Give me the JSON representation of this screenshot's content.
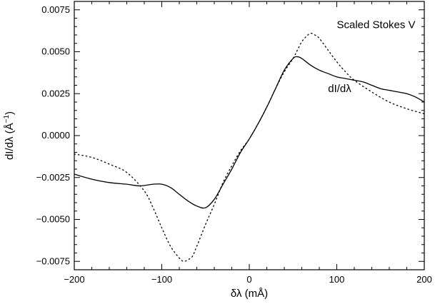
{
  "chart_data": {
    "type": "line",
    "title": "",
    "xlabel": "δλ  (mÅ)",
    "ylabel": "dI/dλ  (Å",
    "ylabel_superscript": "−1",
    "ylabel_close": ")",
    "xlim": [
      -200,
      200
    ],
    "ylim": [
      -0.008,
      0.008
    ],
    "xticks": [
      -200,
      -100,
      0,
      100,
      200
    ],
    "xtick_labels": [
      "−200",
      "−100",
      "0",
      "100",
      "200"
    ],
    "yticks": [
      -0.0075,
      -0.005,
      -0.0025,
      0,
      0.0025,
      0.005,
      0.0075
    ],
    "ytick_labels": [
      "−0.0075",
      "−0.0050",
      "−0.0025",
      "0.0000",
      "0.0025",
      "0.0050",
      "0.0075"
    ],
    "grid": false,
    "annotations": [
      {
        "text": "Scaled Stokes V",
        "x": 100,
        "y": 0.0064
      },
      {
        "text": "dI/dλ",
        "x": 90,
        "y": 0.0026
      }
    ],
    "series": [
      {
        "name": "dI/dλ",
        "style": "solid",
        "color": "#000000",
        "x": [
          -200,
          -180,
          -160,
          -140,
          -125,
          -110,
          -100,
          -90,
          -80,
          -70,
          -60,
          -50,
          -40,
          -30,
          -20,
          -10,
          0,
          10,
          20,
          30,
          40,
          50,
          55,
          60,
          70,
          80,
          90,
          100,
          110,
          120,
          130,
          140,
          150,
          160,
          170,
          180,
          190,
          200
        ],
        "y": [
          -0.0023,
          -0.0026,
          -0.0028,
          -0.0029,
          -0.003,
          -0.0029,
          -0.0029,
          -0.0031,
          -0.0035,
          -0.0039,
          -0.0042,
          -0.0043,
          -0.0038,
          -0.0029,
          -0.002,
          -0.001,
          -0.0002,
          0.0007,
          0.0017,
          0.0028,
          0.0039,
          0.0046,
          0.0047,
          0.0046,
          0.0042,
          0.0039,
          0.0037,
          0.0035,
          0.0034,
          0.0033,
          0.0032,
          0.003,
          0.0028,
          0.0027,
          0.0026,
          0.0025,
          0.0023,
          0.002
        ]
      },
      {
        "name": "Scaled Stokes V",
        "style": "dotted",
        "color": "#000000",
        "x": [
          -200,
          -180,
          -160,
          -140,
          -120,
          -110,
          -100,
          -90,
          -80,
          -75,
          -70,
          -65,
          -60,
          -50,
          -40,
          -30,
          -20,
          -10,
          0,
          10,
          20,
          30,
          40,
          50,
          55,
          60,
          65,
          70,
          75,
          80,
          90,
          100,
          110,
          120,
          140,
          160,
          180,
          200
        ],
        "y": [
          -0.0011,
          -0.0013,
          -0.0017,
          -0.0022,
          -0.0033,
          -0.0043,
          -0.0055,
          -0.0066,
          -0.0073,
          -0.0075,
          -0.0074,
          -0.0072,
          -0.0066,
          -0.0053,
          -0.0041,
          -0.0028,
          -0.0018,
          -0.0009,
          -0.0002,
          0.0007,
          0.0017,
          0.0028,
          0.0038,
          0.0046,
          0.0051,
          0.0056,
          0.0059,
          0.0061,
          0.006,
          0.0058,
          0.0051,
          0.0044,
          0.0038,
          0.0033,
          0.0026,
          0.002,
          0.0016,
          0.0013
        ]
      }
    ]
  }
}
